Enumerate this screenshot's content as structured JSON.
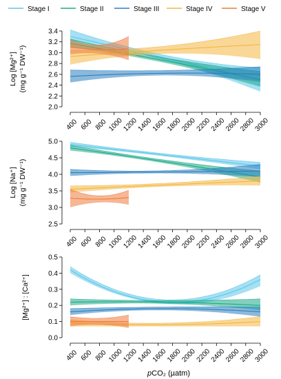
{
  "chart_data": {
    "type": "line",
    "legend": {
      "placement": "top",
      "entries": [
        {
          "name": "Stage I",
          "color": "#5BC6EA"
        },
        {
          "name": "Stage II",
          "color": "#1BAA86"
        },
        {
          "name": "Stage III",
          "color": "#2B7FBF"
        },
        {
          "name": "Stage IV",
          "color": "#F4B642"
        },
        {
          "name": "Stage V",
          "color": "#EE7C3C"
        }
      ]
    },
    "xlabel": "pCO₂ (µatm)",
    "xlabel_parts": {
      "italic": "p",
      "rest": "CO₂ (µatm)"
    },
    "xticks": [
      400,
      600,
      800,
      1000,
      1200,
      1400,
      1600,
      1800,
      2000,
      2200,
      2400,
      2600,
      2800,
      3000
    ],
    "xlim": [
      400,
      3000
    ],
    "panels": [
      {
        "ylabel_lines": [
          "Log [Mg²⁺]",
          "(mg g⁻¹ DW⁻¹)"
        ],
        "ylim": [
          2.0,
          3.4
        ],
        "yticks": [
          "2.0",
          "2.2",
          "2.4",
          "2.6",
          "2.8",
          "3.0",
          "3.2",
          "3.4"
        ],
        "series": [
          {
            "name": "Stage I",
            "x": [
              400,
              1700,
              3000
            ],
            "y": [
              3.3,
              2.9,
              2.5
            ],
            "lower": [
              3.22,
              2.86,
              2.28
            ],
            "upper": [
              3.42,
              2.95,
              2.72
            ],
            "color": "#5BC6EA"
          },
          {
            "name": "Stage II",
            "x": [
              400,
              1700,
              3000
            ],
            "y": [
              3.17,
              2.85,
              2.5
            ],
            "lower": [
              3.1,
              2.81,
              2.37
            ],
            "upper": [
              3.25,
              2.9,
              2.65
            ],
            "color": "#1BAA86"
          },
          {
            "name": "Stage III",
            "x": [
              400,
              1700,
              3000
            ],
            "y": [
              2.56,
              2.62,
              2.6
            ],
            "lower": [
              2.45,
              2.58,
              2.46
            ],
            "upper": [
              2.68,
              2.67,
              2.74
            ],
            "color": "#2B7FBF"
          },
          {
            "name": "Stage IV",
            "x": [
              400,
              1700,
              3000
            ],
            "y": [
              2.93,
              3.05,
              3.15
            ],
            "lower": [
              2.78,
              2.98,
              2.88
            ],
            "upper": [
              3.05,
              3.12,
              3.4
            ],
            "color": "#F4B642"
          },
          {
            "name": "Stage V",
            "x": [
              400,
              800,
              1200
            ],
            "y": [
              3.1,
              3.06,
              3.07
            ],
            "lower": [
              2.97,
              2.98,
              2.86
            ],
            "upper": [
              3.24,
              3.14,
              3.3
            ],
            "color": "#EE7C3C"
          }
        ]
      },
      {
        "ylabel_lines": [
          "Log [Na⁺]",
          "(mg g⁻¹ DW⁻¹)"
        ],
        "ylim": [
          2.5,
          5.0
        ],
        "yticks": [
          "2.5",
          "3.0",
          "3.5",
          "4.0",
          "4.5",
          "5.0"
        ],
        "series": [
          {
            "name": "Stage I",
            "x": [
              400,
              1700,
              3000
            ],
            "y": [
              4.9,
              4.58,
              4.25
            ],
            "lower": [
              4.84,
              4.54,
              4.15
            ],
            "upper": [
              4.97,
              4.62,
              4.36
            ],
            "color": "#5BC6EA"
          },
          {
            "name": "Stage II",
            "x": [
              400,
              1700,
              3000
            ],
            "y": [
              4.8,
              4.38,
              3.92
            ],
            "lower": [
              4.72,
              4.33,
              3.75
            ],
            "upper": [
              4.88,
              4.43,
              4.1
            ],
            "color": "#1BAA86"
          },
          {
            "name": "Stage III",
            "x": [
              400,
              1700,
              3000
            ],
            "y": [
              4.05,
              4.07,
              4.1
            ],
            "lower": [
              3.95,
              4.03,
              3.92
            ],
            "upper": [
              4.15,
              4.11,
              4.3
            ],
            "color": "#2B7FBF"
          },
          {
            "name": "Stage IV",
            "x": [
              400,
              1700,
              3000
            ],
            "y": [
              3.55,
              3.68,
              3.8
            ],
            "lower": [
              3.45,
              3.63,
              3.66
            ],
            "upper": [
              3.65,
              3.73,
              3.94
            ],
            "color": "#F4B642"
          },
          {
            "name": "Stage V",
            "x": [
              400,
              800,
              1200
            ],
            "y": [
              3.28,
              3.25,
              3.3
            ],
            "lower": [
              3.0,
              3.15,
              3.08
            ],
            "upper": [
              3.55,
              3.35,
              3.52
            ],
            "color": "#EE7C3C"
          }
        ]
      },
      {
        "ylabel_lines": [
          "[Mg²⁺] : [Ca²⁺]"
        ],
        "ylim": [
          0.0,
          0.5
        ],
        "yticks": [
          "0.0",
          "0.1",
          "0.2",
          "0.3",
          "0.4",
          "0.5"
        ],
        "series": [
          {
            "name": "Stage I",
            "x": [
              400,
              1700,
              3000
            ],
            "y": [
              0.42,
              0.22,
              0.36
            ],
            "lower": [
              0.4,
              0.21,
              0.32
            ],
            "upper": [
              0.44,
              0.235,
              0.39
            ],
            "color": "#5BC6EA"
          },
          {
            "name": "Stage II",
            "x": [
              400,
              1700,
              3000
            ],
            "y": [
              0.22,
              0.22,
              0.2
            ],
            "lower": [
              0.2,
              0.21,
              0.17
            ],
            "upper": [
              0.24,
              0.23,
              0.24
            ],
            "color": "#1BAA86"
          },
          {
            "name": "Stage III",
            "x": [
              400,
              1700,
              3000
            ],
            "y": [
              0.16,
              0.18,
              0.16
            ],
            "lower": [
              0.14,
              0.17,
              0.13
            ],
            "upper": [
              0.18,
              0.19,
              0.19
            ],
            "color": "#2B7FBF"
          },
          {
            "name": "Stage IV",
            "x": [
              400,
              1700,
              3000
            ],
            "y": [
              0.09,
              0.08,
              0.1
            ],
            "lower": [
              0.07,
              0.07,
              0.07
            ],
            "upper": [
              0.11,
              0.09,
              0.13
            ],
            "color": "#F4B642"
          },
          {
            "name": "Stage V",
            "x": [
              400,
              800,
              1200
            ],
            "y": [
              0.1,
              0.1,
              0.1
            ],
            "lower": [
              0.07,
              0.08,
              0.06
            ],
            "upper": [
              0.13,
              0.12,
              0.14
            ],
            "color": "#EE7C3C"
          }
        ]
      }
    ]
  }
}
